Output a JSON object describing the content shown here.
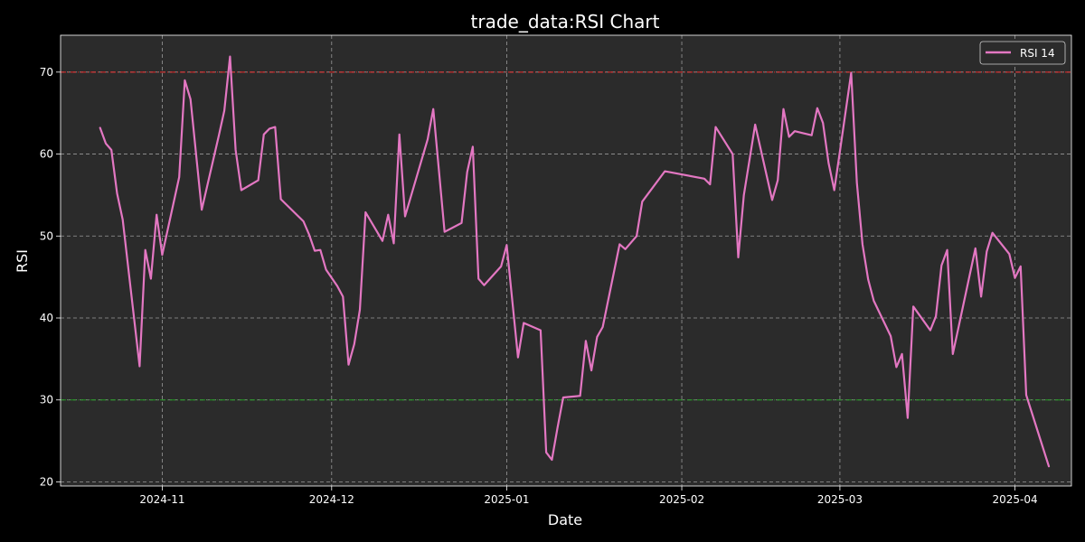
{
  "chart_data": {
    "type": "line",
    "title": "trade_data:RSI Chart",
    "xlabel": "Date",
    "ylabel": "RSI",
    "xlim": [
      "2024-10-14",
      "2025-04-11"
    ],
    "ylim": [
      19.5,
      74.5
    ],
    "grid": true,
    "legend_position": "top-right",
    "x_ticks": [
      {
        "date": "2024-11-01",
        "label": "2024-11"
      },
      {
        "date": "2024-12-01",
        "label": "2024-12"
      },
      {
        "date": "2025-01-01",
        "label": "2025-01"
      },
      {
        "date": "2025-02-01",
        "label": "2025-02"
      },
      {
        "date": "2025-03-01",
        "label": "2025-03"
      },
      {
        "date": "2025-04-01",
        "label": "2025-04"
      }
    ],
    "y_ticks": [
      20,
      30,
      40,
      50,
      60,
      70
    ],
    "reference_lines": [
      {
        "y": 70,
        "color": "#ff2a2a"
      },
      {
        "y": 30,
        "color": "#22aa22"
      }
    ],
    "series": [
      {
        "name": "RSI 14",
        "color": "#e377c2",
        "points": [
          [
            "2024-10-21",
            63.2
          ],
          [
            "2024-10-22",
            61.3
          ],
          [
            "2024-10-23",
            60.5
          ],
          [
            "2024-10-24",
            55.2
          ],
          [
            "2024-10-25",
            52.0
          ],
          [
            "2024-10-28",
            34.1
          ],
          [
            "2024-10-29",
            48.3
          ],
          [
            "2024-10-30",
            44.8
          ],
          [
            "2024-10-31",
            52.6
          ],
          [
            "2024-11-01",
            47.7
          ],
          [
            "2024-11-04",
            57.2
          ],
          [
            "2024-11-05",
            69.0
          ],
          [
            "2024-11-06",
            66.7
          ],
          [
            "2024-11-08",
            53.2
          ],
          [
            "2024-11-11",
            62.2
          ],
          [
            "2024-11-12",
            65.3
          ],
          [
            "2024-11-13",
            71.9
          ],
          [
            "2024-11-14",
            60.5
          ],
          [
            "2024-11-15",
            55.6
          ],
          [
            "2024-11-18",
            56.8
          ],
          [
            "2024-11-19",
            62.4
          ],
          [
            "2024-11-20",
            63.1
          ],
          [
            "2024-11-21",
            63.3
          ],
          [
            "2024-11-22",
            54.5
          ],
          [
            "2024-11-26",
            51.8
          ],
          [
            "2024-11-27",
            50.2
          ],
          [
            "2024-11-28",
            48.2
          ],
          [
            "2024-11-29",
            48.3
          ],
          [
            "2024-11-30",
            45.9
          ],
          [
            "2024-12-02",
            43.9
          ],
          [
            "2024-12-03",
            42.6
          ],
          [
            "2024-12-04",
            34.3
          ],
          [
            "2024-12-05",
            36.8
          ],
          [
            "2024-12-06",
            41.0
          ],
          [
            "2024-12-07",
            52.9
          ],
          [
            "2024-12-10",
            49.4
          ],
          [
            "2024-12-11",
            52.6
          ],
          [
            "2024-12-12",
            49.1
          ],
          [
            "2024-12-13",
            62.4
          ],
          [
            "2024-12-14",
            52.4
          ],
          [
            "2024-12-18",
            61.8
          ],
          [
            "2024-12-19",
            65.5
          ],
          [
            "2024-12-21",
            50.5
          ],
          [
            "2024-12-24",
            51.6
          ],
          [
            "2024-12-25",
            57.8
          ],
          [
            "2024-12-26",
            60.9
          ],
          [
            "2024-12-27",
            44.8
          ],
          [
            "2024-12-28",
            44.0
          ],
          [
            "2024-12-31",
            46.3
          ],
          [
            "2025-01-01",
            48.9
          ],
          [
            "2025-01-03",
            35.2
          ],
          [
            "2025-01-04",
            39.4
          ],
          [
            "2025-01-07",
            38.5
          ],
          [
            "2025-01-08",
            23.6
          ],
          [
            "2025-01-09",
            22.7
          ],
          [
            "2025-01-10",
            26.6
          ],
          [
            "2025-01-11",
            30.3
          ],
          [
            "2025-01-14",
            30.5
          ],
          [
            "2025-01-15",
            37.2
          ],
          [
            "2025-01-16",
            33.6
          ],
          [
            "2025-01-17",
            37.7
          ],
          [
            "2025-01-18",
            38.9
          ],
          [
            "2025-01-21",
            49.0
          ],
          [
            "2025-01-22",
            48.4
          ],
          [
            "2025-01-24",
            50.0
          ],
          [
            "2025-01-25",
            54.2
          ],
          [
            "2025-01-29",
            57.9
          ],
          [
            "2025-02-05",
            57.0
          ],
          [
            "2025-02-06",
            56.3
          ],
          [
            "2025-02-07",
            63.3
          ],
          [
            "2025-02-10",
            60.0
          ],
          [
            "2025-02-11",
            47.4
          ],
          [
            "2025-02-12",
            55.0
          ],
          [
            "2025-02-14",
            63.6
          ],
          [
            "2025-02-17",
            54.4
          ],
          [
            "2025-02-18",
            56.8
          ],
          [
            "2025-02-19",
            65.5
          ],
          [
            "2025-02-20",
            62.1
          ],
          [
            "2025-02-21",
            62.8
          ],
          [
            "2025-02-24",
            62.3
          ],
          [
            "2025-02-25",
            65.6
          ],
          [
            "2025-02-26",
            63.8
          ],
          [
            "2025-02-27",
            58.9
          ],
          [
            "2025-02-28",
            55.6
          ],
          [
            "2025-03-01",
            60.3
          ],
          [
            "2025-03-03",
            69.9
          ],
          [
            "2025-03-04",
            56.5
          ],
          [
            "2025-03-05",
            49.0
          ],
          [
            "2025-03-06",
            44.7
          ],
          [
            "2025-03-07",
            42.1
          ],
          [
            "2025-03-10",
            37.8
          ],
          [
            "2025-03-11",
            34.0
          ],
          [
            "2025-03-12",
            35.6
          ],
          [
            "2025-03-13",
            27.8
          ],
          [
            "2025-03-14",
            41.4
          ],
          [
            "2025-03-17",
            38.5
          ],
          [
            "2025-03-18",
            40.2
          ],
          [
            "2025-03-19",
            46.4
          ],
          [
            "2025-03-20",
            48.3
          ],
          [
            "2025-03-21",
            35.6
          ],
          [
            "2025-03-25",
            48.5
          ],
          [
            "2025-03-26",
            42.6
          ],
          [
            "2025-03-27",
            48.1
          ],
          [
            "2025-03-28",
            50.4
          ],
          [
            "2025-03-31",
            47.8
          ],
          [
            "2025-04-01",
            44.9
          ],
          [
            "2025-04-02",
            46.3
          ],
          [
            "2025-04-03",
            30.6
          ],
          [
            "2025-04-07",
            21.9
          ]
        ]
      }
    ]
  }
}
